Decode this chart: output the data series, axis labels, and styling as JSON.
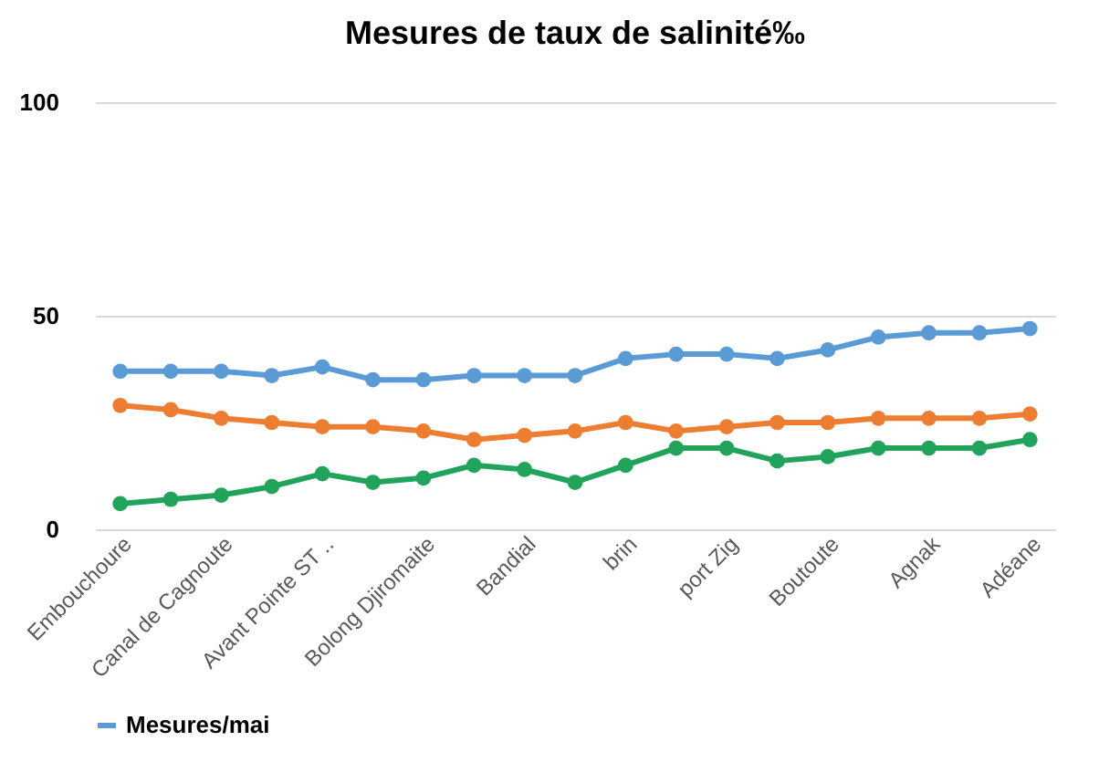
{
  "chart_data": {
    "type": "line",
    "title": "Mesures de taux de salinité‰",
    "categories": [
      "Embouchoure",
      null,
      "Canal de Cagnoute",
      null,
      "Avant Pointe ST ..",
      null,
      "Bolong Djiromaite",
      null,
      "Bandial",
      null,
      "brin",
      null,
      "port Zig",
      null,
      "Boutoute",
      null,
      "Agnak",
      null,
      "Adéane"
    ],
    "series": [
      {
        "name": "Mesures/mai",
        "color": "#5b9bd5",
        "values": [
          37,
          37,
          37,
          36,
          38,
          35,
          35,
          36,
          36,
          36,
          40,
          41,
          41,
          40,
          42,
          45,
          46,
          46,
          47
        ]
      },
      {
        "color": "#ed7d31",
        "values": [
          29,
          28,
          26,
          25,
          24,
          24,
          23,
          21,
          22,
          23,
          25,
          23,
          24,
          25,
          25,
          26,
          26,
          26,
          27
        ]
      },
      {
        "color": "#21a35b",
        "values": [
          6,
          7,
          8,
          10,
          13,
          11,
          12,
          15,
          14,
          11,
          15,
          19,
          19,
          16,
          17,
          19,
          19,
          19,
          21
        ]
      }
    ],
    "ylim": [
      0,
      100
    ],
    "yticks": [
      0,
      50,
      100
    ],
    "grid": "y",
    "legend": "bottom",
    "marker": "circle",
    "line_style": "solid"
  }
}
